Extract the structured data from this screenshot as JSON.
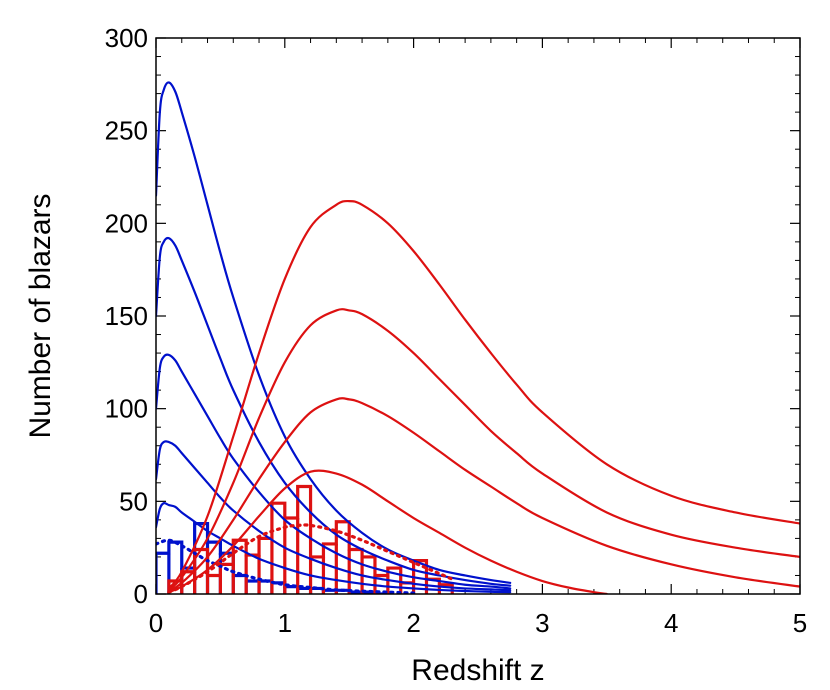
{
  "chart_data": {
    "type": "line",
    "title": "",
    "xlabel": "Redshift z",
    "ylabel": "Number of blazars",
    "xlim": [
      0,
      5
    ],
    "ylim": [
      0,
      300
    ],
    "xticks": [
      0,
      1,
      2,
      3,
      4,
      5
    ],
    "yticks": [
      0,
      50,
      100,
      150,
      200,
      250,
      300
    ],
    "grid": false,
    "legend": "none",
    "colors": {
      "blue": "#0011cc",
      "red": "#dd1111"
    },
    "series": [
      {
        "kind": "model",
        "group": "blue",
        "style": "solid",
        "x": [
          0.0,
          0.03,
          0.06,
          0.1,
          0.15,
          0.2,
          0.3,
          0.4,
          0.5,
          0.6,
          0.8,
          1.0,
          1.2,
          1.4,
          1.6,
          1.8,
          2.0,
          2.2,
          2.4,
          2.6,
          2.75
        ],
        "y": [
          215,
          260,
          272,
          276,
          271,
          260,
          236,
          210,
          184,
          160,
          118,
          85,
          62,
          45,
          33,
          24,
          18,
          13,
          10,
          7.5,
          6
        ]
      },
      {
        "kind": "model",
        "group": "blue",
        "style": "solid",
        "x": [
          0.0,
          0.03,
          0.06,
          0.1,
          0.15,
          0.2,
          0.3,
          0.4,
          0.5,
          0.6,
          0.8,
          1.0,
          1.2,
          1.4,
          1.6,
          1.8,
          2.0,
          2.2,
          2.4,
          2.6,
          2.75
        ],
        "y": [
          150,
          182,
          190,
          192,
          188,
          180,
          163,
          145,
          127,
          110,
          82,
          60,
          44,
          32,
          24,
          18,
          13,
          10,
          7.5,
          5.5,
          4.5
        ]
      },
      {
        "kind": "model",
        "group": "blue",
        "style": "solid",
        "x": [
          0.0,
          0.03,
          0.06,
          0.1,
          0.15,
          0.2,
          0.3,
          0.4,
          0.5,
          0.6,
          0.8,
          1.0,
          1.2,
          1.4,
          1.6,
          1.8,
          2.0,
          2.2,
          2.4,
          2.6,
          2.75
        ],
        "y": [
          100,
          122,
          128,
          129,
          126,
          120,
          108,
          96,
          84,
          73,
          55,
          40,
          30,
          22,
          16,
          12,
          9,
          7,
          5,
          4,
          3
        ]
      },
      {
        "kind": "model",
        "group": "blue",
        "style": "solid",
        "x": [
          0.0,
          0.03,
          0.06,
          0.1,
          0.15,
          0.2,
          0.3,
          0.4,
          0.5,
          0.6,
          0.8,
          1.0,
          1.2,
          1.4,
          1.6,
          1.8,
          2.0,
          2.2,
          2.4,
          2.6,
          2.75
        ],
        "y": [
          62,
          78,
          82,
          82,
          80,
          76,
          68,
          60,
          52,
          45,
          34,
          25,
          19,
          14,
          10,
          7.5,
          5.5,
          4,
          3,
          2.5,
          2
        ]
      },
      {
        "kind": "model",
        "group": "blue",
        "style": "solid",
        "x": [
          0.0,
          0.03,
          0.06,
          0.1,
          0.15,
          0.2,
          0.3,
          0.4,
          0.5,
          0.6,
          0.8,
          1.0,
          1.2,
          1.4,
          1.6,
          1.8,
          2.0,
          2.2,
          2.4,
          2.6,
          2.75
        ],
        "y": [
          36,
          46,
          49,
          48,
          47,
          44,
          39,
          34,
          30,
          26,
          19,
          14,
          10,
          7.5,
          5.5,
          4,
          3,
          2.2,
          1.6,
          1.2,
          1
        ]
      },
      {
        "kind": "model",
        "group": "blue",
        "style": "dotted",
        "x": [
          0.0,
          0.1,
          0.2,
          0.3,
          0.4,
          0.5,
          0.6,
          0.8,
          1.0,
          1.2,
          1.4,
          1.6,
          1.8,
          2.0
        ],
        "y": [
          27,
          29,
          26,
          22,
          18,
          15,
          12,
          8,
          5,
          3.5,
          2.2,
          1.5,
          1,
          0.5
        ]
      },
      {
        "kind": "model",
        "group": "red",
        "style": "solid",
        "x": [
          0.1,
          0.2,
          0.4,
          0.6,
          0.8,
          1.0,
          1.2,
          1.4,
          1.5,
          1.6,
          1.8,
          2.0,
          2.2,
          2.4,
          2.6,
          2.8,
          3.0,
          3.5,
          4.0,
          4.5,
          5.0
        ],
        "y": [
          3,
          12,
          42,
          85,
          130,
          170,
          198,
          210,
          212,
          210,
          200,
          185,
          167,
          148,
          130,
          113,
          98,
          70,
          53,
          44,
          38
        ]
      },
      {
        "kind": "model",
        "group": "red",
        "style": "solid",
        "x": [
          0.1,
          0.2,
          0.4,
          0.6,
          0.8,
          1.0,
          1.2,
          1.4,
          1.5,
          1.6,
          1.8,
          2.0,
          2.2,
          2.4,
          2.6,
          2.8,
          3.0,
          3.5,
          4.0,
          4.5,
          5.0
        ],
        "y": [
          2,
          9,
          30,
          60,
          95,
          125,
          145,
          153,
          153,
          151,
          142,
          130,
          116,
          102,
          88,
          76,
          65,
          44,
          32,
          25,
          20
        ]
      },
      {
        "kind": "model",
        "group": "red",
        "style": "solid",
        "x": [
          0.1,
          0.2,
          0.4,
          0.6,
          0.8,
          1.0,
          1.2,
          1.4,
          1.5,
          1.6,
          1.8,
          2.0,
          2.2,
          2.4,
          2.6,
          2.8,
          3.0,
          3.5,
          4.0,
          4.5,
          5.0
        ],
        "y": [
          1.5,
          6,
          20,
          40,
          62,
          82,
          98,
          105,
          105,
          103,
          96,
          87,
          77,
          67,
          58,
          49,
          41,
          26,
          16,
          9,
          4
        ]
      },
      {
        "kind": "model",
        "group": "red",
        "style": "solid",
        "x": [
          0.1,
          0.2,
          0.4,
          0.6,
          0.8,
          1.0,
          1.2,
          1.4,
          1.6,
          1.8,
          2.0,
          2.2,
          2.4,
          2.6,
          2.8,
          3.0,
          3.2,
          3.4,
          3.5
        ],
        "y": [
          1,
          4,
          13,
          26,
          42,
          57,
          66,
          65,
          59,
          50,
          41,
          33,
          25,
          18,
          12,
          7,
          3.5,
          1,
          0
        ]
      },
      {
        "kind": "model",
        "group": "red",
        "style": "dotted",
        "x": [
          0.1,
          0.2,
          0.4,
          0.6,
          0.8,
          1.0,
          1.1,
          1.2,
          1.4,
          1.6,
          1.8,
          2.0,
          2.2,
          2.3
        ],
        "y": [
          1,
          4,
          12,
          22,
          31,
          36,
          37,
          37,
          34,
          29,
          23,
          17,
          11,
          8
        ]
      },
      {
        "kind": "histogram",
        "group": "blue",
        "edges": [
          0.0,
          0.1,
          0.2,
          0.3,
          0.4,
          0.5,
          0.6,
          0.7,
          0.8,
          0.9,
          1.0,
          1.1,
          1.2,
          1.3,
          1.4,
          1.5,
          1.6,
          1.7,
          1.8
        ],
        "counts": [
          22,
          28,
          14,
          38,
          28,
          22,
          10,
          7,
          7,
          6,
          4,
          3,
          3,
          2,
          2,
          1,
          1,
          0
        ]
      },
      {
        "kind": "histogram",
        "group": "red",
        "edges": [
          0.1,
          0.2,
          0.3,
          0.4,
          0.5,
          0.6,
          0.7,
          0.8,
          0.9,
          1.0,
          1.1,
          1.2,
          1.3,
          1.4,
          1.5,
          1.6,
          1.7,
          1.8,
          1.9,
          2.0,
          2.1,
          2.2,
          2.3
        ],
        "counts": [
          7,
          12,
          24,
          10,
          16,
          29,
          21,
          30,
          49,
          41,
          58,
          20,
          27,
          39,
          24,
          20,
          10,
          14,
          6,
          18,
          8,
          5
        ]
      }
    ]
  }
}
